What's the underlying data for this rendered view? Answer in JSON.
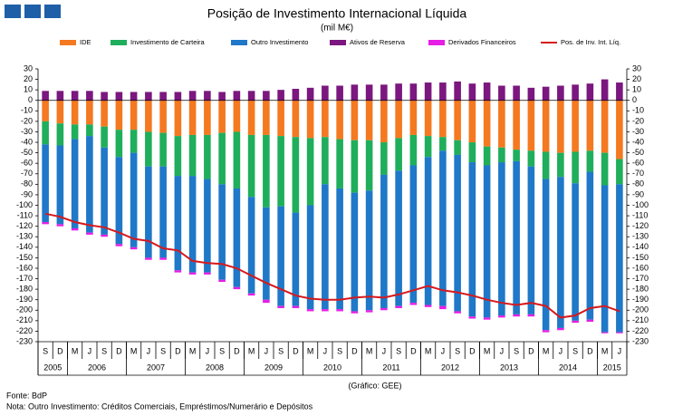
{
  "chart_data": {
    "type": "bar",
    "title": "Posição de Investimento Internacional Líquida",
    "subtitle": "(mil M€)",
    "categories": [
      "S",
      "D",
      "M",
      "J",
      "S",
      "D",
      "M",
      "J",
      "S",
      "D",
      "M",
      "J",
      "S",
      "D",
      "M",
      "J",
      "S",
      "D",
      "M",
      "J",
      "S",
      "D",
      "M",
      "J",
      "S",
      "D",
      "M",
      "J",
      "S",
      "D",
      "M",
      "J",
      "S",
      "D",
      "M",
      "J",
      "S",
      "D",
      "M",
      "J"
    ],
    "years": [
      "2005",
      "2006",
      "2007",
      "2008",
      "2009",
      "2010",
      "2011",
      "2012",
      "2013",
      "2014",
      "2015"
    ],
    "series": [
      {
        "name": "IDE",
        "color": "#f47920",
        "values": [
          -20,
          -22,
          -23,
          -23,
          -25,
          -28,
          -28,
          -30,
          -31,
          -34,
          -33,
          -33,
          -31,
          -30,
          -33,
          -33,
          -34,
          -35,
          -36,
          -35,
          -37,
          -38,
          -38,
          -40,
          -36,
          -33,
          -34,
          -35,
          -38,
          -40,
          -44,
          -45,
          -47,
          -48,
          -49,
          -50,
          -49,
          -48,
          -50,
          -56
        ]
      },
      {
        "name": "Investimento de Carteira",
        "color": "#1fae5b",
        "values": [
          -22,
          -21,
          -14,
          -11,
          -20,
          -26,
          -22,
          -33,
          -32,
          -38,
          -39,
          -42,
          -49,
          -54,
          -59,
          -69,
          -67,
          -72,
          -64,
          -45,
          -47,
          -50,
          -48,
          -31,
          -31,
          -29,
          -20,
          -13,
          -14,
          -19,
          -18,
          -14,
          -11,
          -15,
          -26,
          -23,
          -30,
          -20,
          -31,
          -24
        ]
      },
      {
        "name": "Outro Investimento",
        "color": "#1f78c8",
        "values": [
          -74,
          -75,
          -85,
          -92,
          -83,
          -83,
          -90,
          -87,
          -87,
          -90,
          -92,
          -89,
          -91,
          -94,
          -92,
          -88,
          -95,
          -89,
          -99,
          -119,
          -115,
          -113,
          -114,
          -127,
          -129,
          -131,
          -141,
          -148,
          -149,
          -147,
          -145,
          -146,
          -146,
          -141,
          -144,
          -144,
          -131,
          -141,
          -140,
          -141
        ]
      },
      {
        "name": "Ativos de Reserva",
        "color": "#7b177f",
        "values": [
          9,
          9,
          9,
          9,
          8,
          8,
          8,
          8,
          8,
          8,
          9,
          9,
          8,
          9,
          9,
          9,
          10,
          11,
          12,
          14,
          14,
          15,
          15,
          15,
          16,
          16,
          17,
          17,
          18,
          16,
          17,
          14,
          14,
          12,
          13,
          14,
          15,
          16,
          20,
          17
        ]
      },
      {
        "name": "Derivados Financeiros",
        "color": "#e61ee6",
        "values": [
          -2,
          -2,
          -2,
          -2,
          -2,
          -2,
          -2,
          -2,
          -2,
          -2,
          -2,
          -2,
          -2,
          -2,
          -2,
          -3,
          -2,
          -2,
          -2,
          -2,
          -2,
          -2,
          -2,
          -2,
          -2,
          -2,
          -2,
          -3,
          -2,
          -2,
          -2,
          -2,
          -2,
          -2,
          -2,
          -2,
          -2,
          -2,
          -1,
          -1
        ]
      },
      {
        "name": "Pos. de Inv. Int. Líq.",
        "type": "line",
        "color": "#d7191c",
        "values": [
          -108,
          -111,
          -116,
          -119,
          -121,
          -126,
          -132,
          -134,
          -141,
          -143,
          -153,
          -155,
          -156,
          -160,
          -167,
          -174,
          -180,
          -186,
          -189,
          -190,
          -190,
          -188,
          -187,
          -188,
          -185,
          -181,
          -177,
          -181,
          -183,
          -186,
          -190,
          -193,
          -195,
          -193,
          -196,
          -207,
          -205,
          -198,
          -196,
          -201
        ]
      }
    ],
    "ylim": [
      -230,
      30
    ],
    "yticks": [
      -230,
      -220,
      -210,
      -200,
      -190,
      -180,
      -170,
      -160,
      -150,
      -140,
      -130,
      -120,
      -110,
      -100,
      -90,
      -80,
      -70,
      -60,
      -50,
      -40,
      -30,
      -20,
      -10,
      0,
      10,
      20,
      30
    ],
    "y2lim": [
      -230,
      30
    ],
    "y2ticks": [
      -230,
      -220,
      -210,
      -200,
      -190,
      -180,
      -170,
      -160,
      -150,
      -140,
      -130,
      -120,
      -110,
      -100,
      -90,
      -80,
      -70,
      -60,
      -50,
      -40,
      -30,
      -20,
      -10,
      0,
      10,
      20,
      30
    ],
    "credit": "(Gráfico: GEE)",
    "source": "Fonte: BdP",
    "note": "Nota: Outro Investimento: Créditos Comerciais, Empréstimos/Numerário e Depósitos"
  }
}
